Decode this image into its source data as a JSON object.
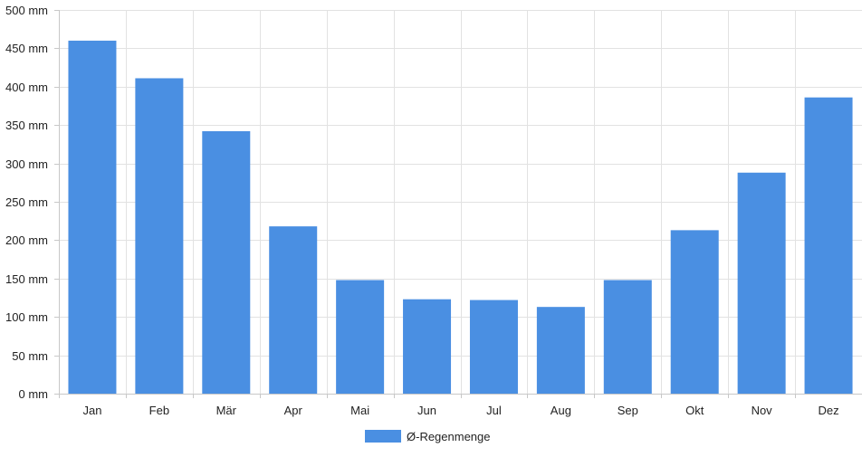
{
  "chart_data": {
    "type": "bar",
    "categories": [
      "Jan",
      "Feb",
      "Mär",
      "Apr",
      "Mai",
      "Jun",
      "Jul",
      "Aug",
      "Sep",
      "Okt",
      "Nov",
      "Dez"
    ],
    "series": [
      {
        "name": "Ø-Regenmenge",
        "values": [
          460,
          411,
          342,
          218,
          148,
          123,
          122,
          113,
          148,
          213,
          288,
          386
        ]
      }
    ],
    "ylim": [
      0,
      500
    ],
    "yticks": [
      0,
      50,
      100,
      150,
      200,
      250,
      300,
      350,
      400,
      450,
      500
    ],
    "y_tick_labels": [
      "0 mm",
      "50 mm",
      "100 mm",
      "150 mm",
      "200 mm",
      "250 mm",
      "300 mm",
      "350 mm",
      "400 mm",
      "450 mm",
      "500 mm"
    ],
    "grid": true,
    "legend_position": "bottom-center",
    "bar_color": "#4a8fe2"
  }
}
